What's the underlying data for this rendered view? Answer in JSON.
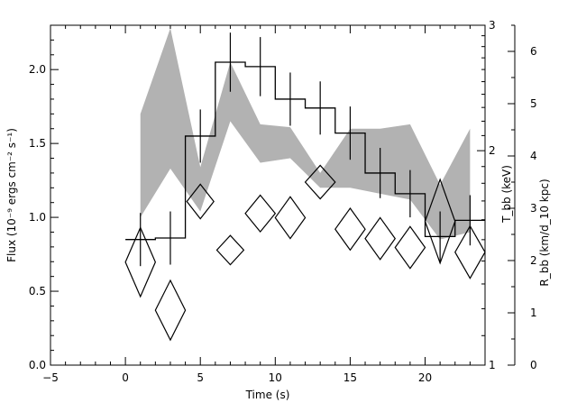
{
  "chart_data": {
    "type": "line",
    "xlabel": "Time (s)",
    "ylabel_left": "Flux (10⁻⁹ ergs cm⁻² s⁻¹)",
    "ylabel_right_inner": "T_bb (keV)",
    "ylabel_right_outer": "R_bb (km/d_10 kpc)",
    "xlim": [
      -5,
      24
    ],
    "ylim": [
      0,
      2.3
    ],
    "y2lim": [
      1,
      3
    ],
    "y3lim": [
      0,
      6.5
    ],
    "x_ticks": [
      -5,
      0,
      5,
      10,
      15,
      20
    ],
    "y_ticks": [
      0.0,
      0.5,
      1.0,
      1.5,
      2.0
    ],
    "y2_major_ticks": [
      1,
      2,
      3
    ],
    "y3_ticks": [
      0,
      1,
      2,
      3,
      4,
      5,
      6
    ],
    "grid": false,
    "series": [
      {
        "kind": "step",
        "color": "#000000",
        "points": [
          {
            "t0": 0,
            "t1": 2,
            "y": 0.85,
            "err": 0.18
          },
          {
            "t0": 2,
            "t1": 4,
            "y": 0.86,
            "err": 0.18
          },
          {
            "t0": 4,
            "t1": 6,
            "y": 1.55,
            "err": 0.18
          },
          {
            "t0": 6,
            "t1": 8,
            "y": 2.05,
            "err": 0.2
          },
          {
            "t0": 8,
            "t1": 10,
            "y": 2.02,
            "err": 0.2
          },
          {
            "t0": 10,
            "t1": 12,
            "y": 1.8,
            "err": 0.18
          },
          {
            "t0": 12,
            "t1": 14,
            "y": 1.74,
            "err": 0.18
          },
          {
            "t0": 14,
            "t1": 16,
            "y": 1.57,
            "err": 0.18
          },
          {
            "t0": 16,
            "t1": 18,
            "y": 1.3,
            "err": 0.17
          },
          {
            "t0": 18,
            "t1": 20,
            "y": 1.16,
            "err": 0.16
          },
          {
            "t0": 20,
            "t1": 22,
            "y": 0.87,
            "err": 0.17
          },
          {
            "t0": 22,
            "t1": 24,
            "y": 0.98,
            "err": 0.17
          }
        ]
      },
      {
        "kind": "band",
        "color": "#b2b2b2",
        "x": [
          1,
          3,
          5,
          7,
          9,
          11,
          13,
          15,
          17,
          19,
          21,
          23
        ],
        "lower": [
          1.0,
          1.33,
          1.04,
          1.65,
          1.37,
          1.4,
          1.2,
          1.2,
          1.16,
          1.12,
          0.85,
          0.9
        ],
        "upper": [
          1.7,
          2.28,
          1.34,
          2.05,
          1.63,
          1.61,
          1.3,
          1.6,
          1.6,
          1.63,
          1.22,
          1.6
        ]
      },
      {
        "kind": "diamond",
        "color": "#000000",
        "axis": "Rbb",
        "points": [
          {
            "x": 1,
            "y": 1.97,
            "hx": 1.0,
            "dy_top": 0.66,
            "dy_bot": 0.66
          },
          {
            "x": 3,
            "y": 1.05,
            "hx": 1.0,
            "dy_top": 0.57,
            "dy_bot": 0.57
          },
          {
            "x": 5,
            "y": 3.13,
            "hx": 0.9,
            "dy_top": 0.33,
            "dy_bot": 0.33
          },
          {
            "x": 7,
            "y": 2.2,
            "hx": 0.9,
            "dy_top": 0.28,
            "dy_bot": 0.28
          },
          {
            "x": 9,
            "y": 2.9,
            "hx": 1.0,
            "dy_top": 0.35,
            "dy_bot": 0.35
          },
          {
            "x": 11,
            "y": 2.82,
            "hx": 1.0,
            "dy_top": 0.4,
            "dy_bot": 0.4
          },
          {
            "x": 13,
            "y": 3.5,
            "hx": 1.0,
            "dy_top": 0.32,
            "dy_bot": 0.32
          },
          {
            "x": 15,
            "y": 2.6,
            "hx": 1.0,
            "dy_top": 0.4,
            "dy_bot": 0.4
          },
          {
            "x": 17,
            "y": 2.42,
            "hx": 1.0,
            "dy_top": 0.4,
            "dy_bot": 0.4
          },
          {
            "x": 19,
            "y": 2.25,
            "hx": 1.0,
            "dy_top": 0.4,
            "dy_bot": 0.4
          },
          {
            "x": 21,
            "y": 2.75,
            "hx": 1.0,
            "dy_top": 0.8,
            "dy_bot": 0.8
          },
          {
            "x": 23,
            "y": 2.16,
            "hx": 1.0,
            "dy_top": 0.5,
            "dy_bot": 0.5
          }
        ]
      }
    ]
  }
}
